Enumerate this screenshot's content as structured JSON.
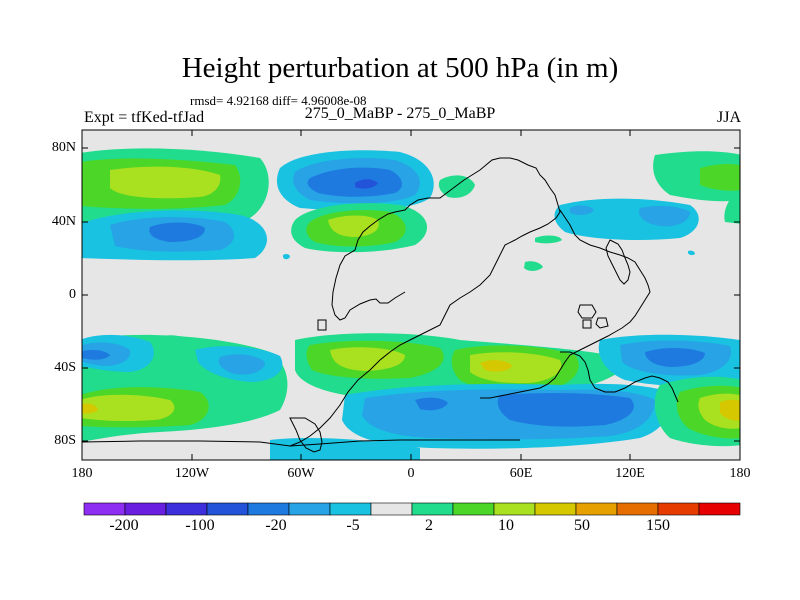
{
  "chart_data": {
    "type": "heatmap",
    "title": "Height perturbation at 500 hPa (in m)",
    "stats_line": "rmsd= 4.92168 diff= 4.96008e-08",
    "left_label": "Expt = tfKed-tfJad",
    "center_label": "275_0_MaBP - 275_0_MaBP",
    "right_label": "JJA",
    "x_range": [
      -180,
      180
    ],
    "y_range": [
      -90,
      90
    ],
    "x_ticks": [
      "180",
      "120W",
      "60W",
      "0",
      "60E",
      "120E",
      "180"
    ],
    "y_ticks": [
      "80N",
      "40N",
      "0",
      "40S",
      "80S"
    ],
    "colorbar_labels": [
      "-200",
      "-100",
      "-20",
      "-5",
      "2",
      "10",
      "50",
      "150"
    ],
    "colorbar_colors": [
      "#8e2ef2",
      "#6a1ee0",
      "#3d30dc",
      "#2353d8",
      "#1f7ae0",
      "#27a3e6",
      "#19c2e0",
      "#e6e6e6",
      "#20dc8c",
      "#4cd628",
      "#a9e01f",
      "#d6c800",
      "#e6a000",
      "#e66e00",
      "#e63c00",
      "#e60000"
    ],
    "contour_features": [
      {
        "name": "NH subtropical positive band",
        "lon": [
          -170,
          -60
        ],
        "lat": [
          50,
          70
        ],
        "class": "10-50"
      },
      {
        "name": "North Atlantic negative low",
        "lon": [
          -40,
          0
        ],
        "lat": [
          55,
          75
        ],
        "class": "-20"
      },
      {
        "name": "Central Pacific negative",
        "lon": [
          -150,
          -100
        ],
        "lat": [
          35,
          50
        ],
        "class": "-5"
      },
      {
        "name": "Mid-Atlantic positive",
        "lon": [
          -60,
          -10
        ],
        "lat": [
          35,
          50
        ],
        "class": "50"
      },
      {
        "name": "SH westerlies positive 40S",
        "lon": [
          -180,
          180
        ],
        "lat": [
          -60,
          -30
        ],
        "class": "10-50"
      },
      {
        "name": "Southern Ocean negative",
        "lon": [
          -40,
          120
        ],
        "lat": [
          -80,
          -55
        ],
        "class": "-20"
      },
      {
        "name": "South Pacific positive",
        "lon": [
          150,
          180
        ],
        "lat": [
          -80,
          -55
        ],
        "class": "50"
      }
    ]
  }
}
